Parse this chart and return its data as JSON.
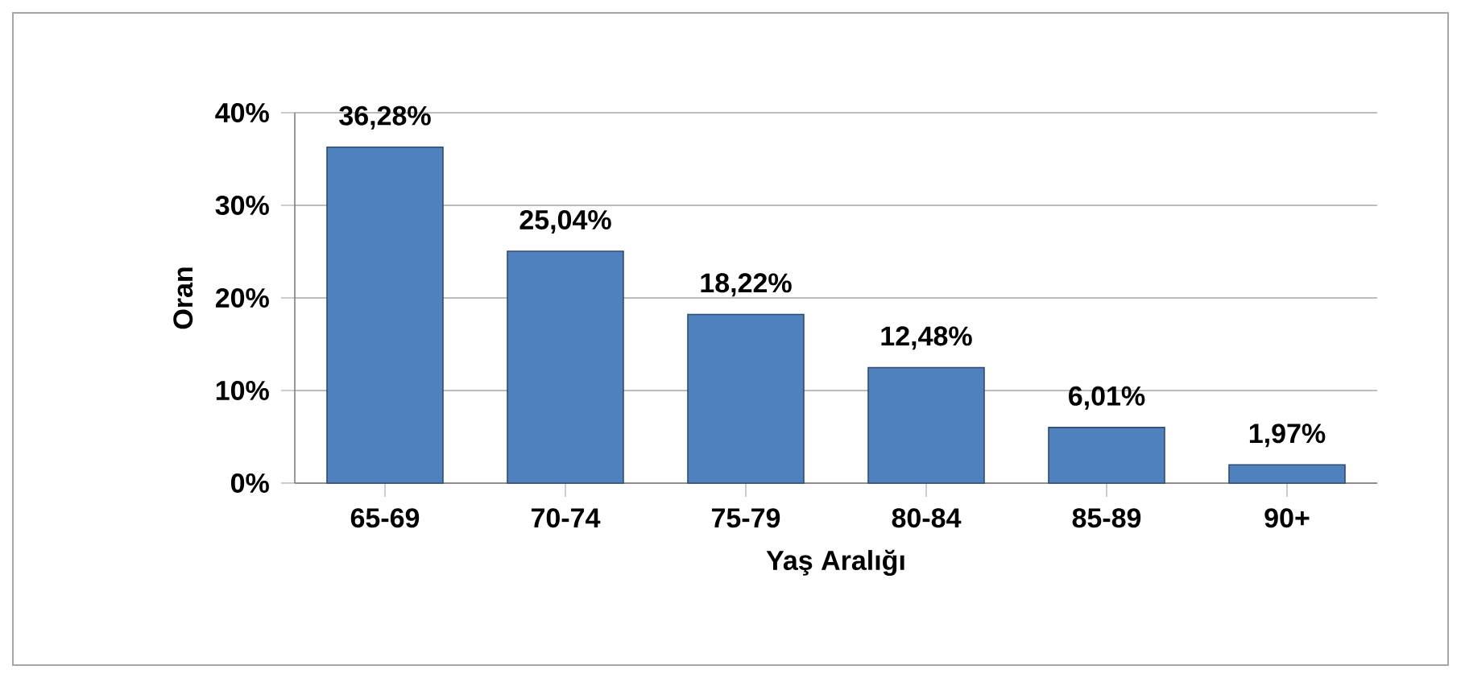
{
  "chart_data": {
    "type": "bar",
    "xlabel": "Yaş Aralığı",
    "ylabel": "Oran",
    "categories": [
      "65-69",
      "70-74",
      "75-79",
      "80-84",
      "85-89",
      "90+"
    ],
    "values": [
      36.28,
      25.04,
      18.22,
      12.48,
      6.01,
      1.97
    ],
    "value_labels": [
      "36,28%",
      "25,04%",
      "18,22%",
      "12,48%",
      "6,01%",
      "1,97%"
    ],
    "color": "#4f81bd",
    "ylim": [
      0,
      40
    ],
    "yticks": [
      {
        "value": 0,
        "label": "0%"
      },
      {
        "value": 10,
        "label": "10%"
      },
      {
        "value": 20,
        "label": "20%"
      },
      {
        "value": 30,
        "label": "30%"
      },
      {
        "value": 40,
        "label": "40%"
      }
    ],
    "grid": "y"
  }
}
